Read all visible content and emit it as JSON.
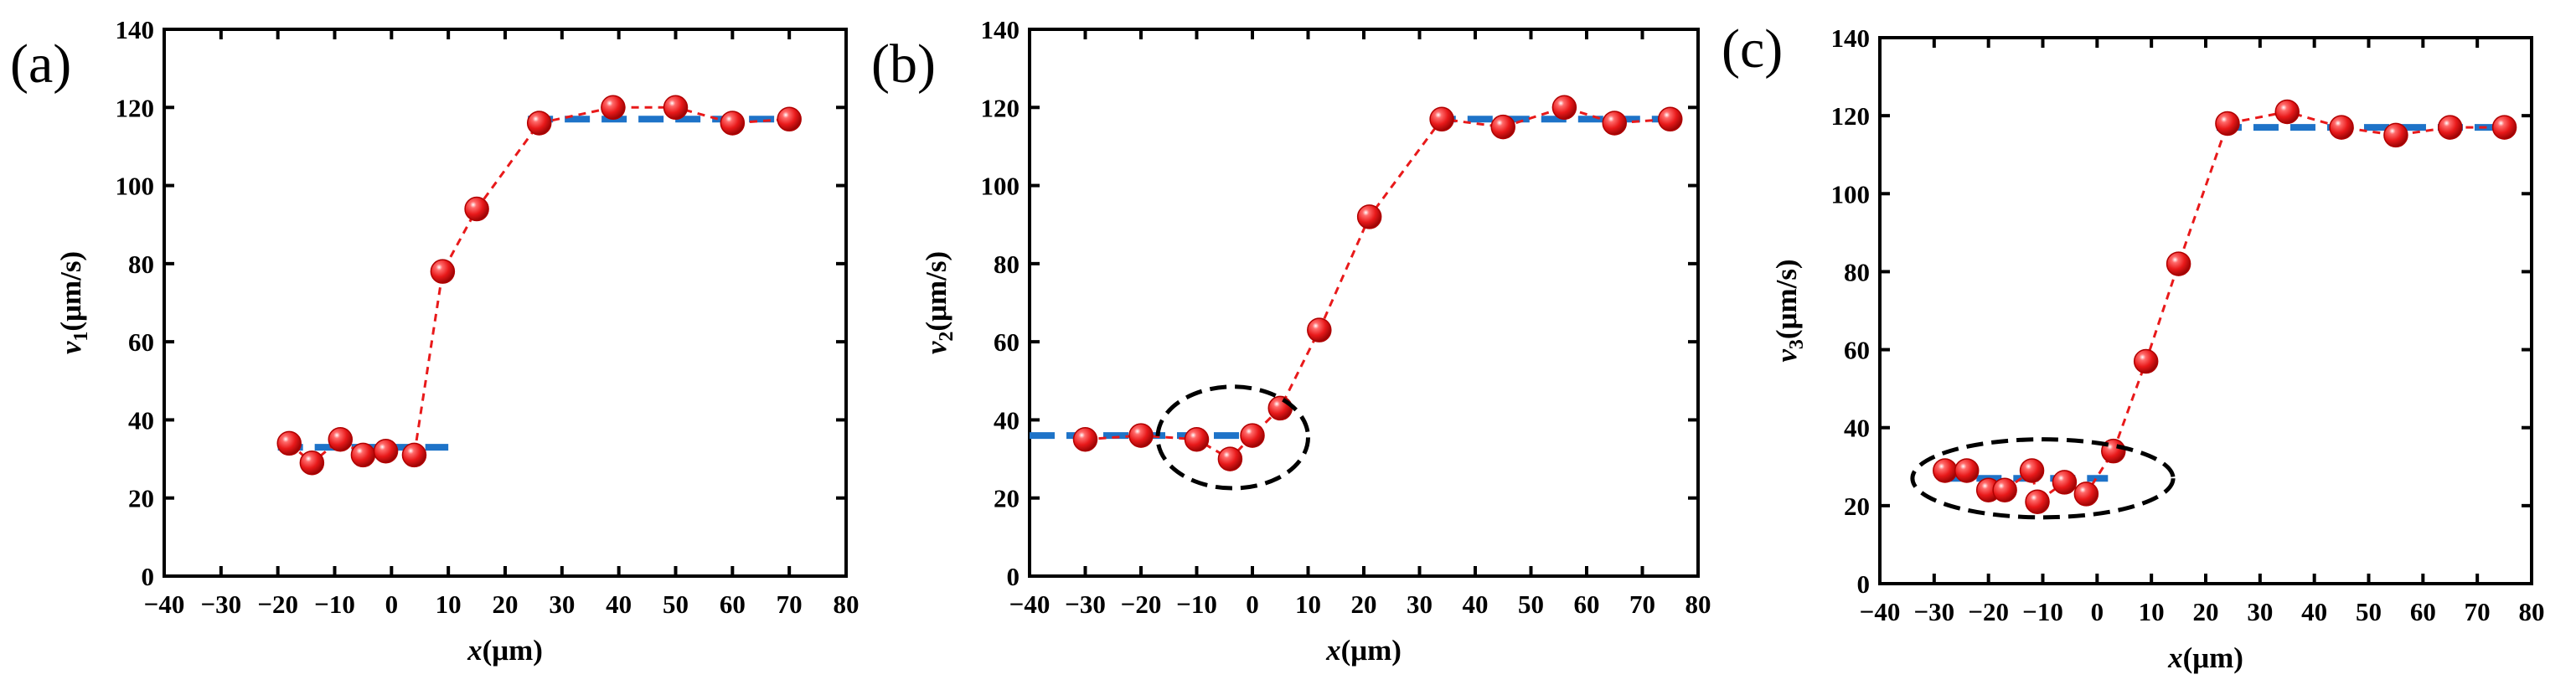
{
  "chart_data": [
    {
      "type": "scatter",
      "panel_label": "(a)",
      "xlabel_var": "x",
      "xlabel_unit": "(μm)",
      "ylabel_var": "v",
      "ylabel_sub": "1",
      "ylabel_unit": "(μm/s)",
      "xlim": [
        -40,
        80
      ],
      "ylim": [
        0,
        140
      ],
      "xticks": [
        -40,
        -30,
        -20,
        -10,
        0,
        10,
        20,
        30,
        40,
        50,
        60,
        70,
        80
      ],
      "xtick_labels": [
        "−40",
        "−30",
        "−20",
        "−10",
        "0",
        "10",
        "20",
        "30",
        "40",
        "50",
        "60",
        "70",
        "80"
      ],
      "yticks": [
        0,
        20,
        40,
        60,
        80,
        100,
        120,
        140
      ],
      "ytick_labels": [
        "0",
        "20",
        "40",
        "60",
        "80",
        "100",
        "120",
        "140"
      ],
      "points": {
        "x": [
          -18,
          -14,
          -9,
          -5,
          -1,
          4,
          9,
          15,
          26,
          39,
          50,
          60,
          70
        ],
        "y": [
          34,
          29,
          35,
          31,
          32,
          31,
          78,
          94,
          116,
          120,
          120,
          116,
          117
        ]
      },
      "mean_lines": [
        {
          "x": [
            -20,
            10
          ],
          "y": 33
        },
        {
          "x": [
            24,
            72
          ],
          "y": 117
        }
      ],
      "ellipse": null
    },
    {
      "type": "scatter",
      "panel_label": "(b)",
      "xlabel_var": "x",
      "xlabel_unit": "(μm)",
      "ylabel_var": "v",
      "ylabel_sub": "2",
      "ylabel_unit": "(μm/s)",
      "xlim": [
        -40,
        80
      ],
      "ylim": [
        0,
        140
      ],
      "xticks": [
        -40,
        -30,
        -20,
        -10,
        0,
        10,
        20,
        30,
        40,
        50,
        60,
        70,
        80
      ],
      "xtick_labels": [
        "−40",
        "−30",
        "−20",
        "−10",
        "0",
        "10",
        "20",
        "30",
        "40",
        "50",
        "60",
        "70",
        "80"
      ],
      "yticks": [
        0,
        20,
        40,
        60,
        80,
        100,
        120,
        140
      ],
      "ytick_labels": [
        "0",
        "20",
        "40",
        "60",
        "80",
        "100",
        "120",
        "140"
      ],
      "points": {
        "x": [
          -30,
          -20,
          -10,
          -4,
          0,
          5,
          12,
          21,
          34,
          45,
          56,
          65,
          75
        ],
        "y": [
          35,
          36,
          35,
          30,
          36,
          43,
          63,
          92,
          117,
          115,
          120,
          116,
          117
        ]
      },
      "mean_lines": [
        {
          "x": [
            -40,
            0
          ],
          "y": 36
        },
        {
          "x": [
            32,
            77
          ],
          "y": 117
        }
      ],
      "ellipse": {
        "cx": -3.5,
        "cy": 35.5,
        "rx": 13.5,
        "ry": 13
      }
    },
    {
      "type": "scatter",
      "panel_label": "(c)",
      "xlabel_var": "x",
      "xlabel_unit": "(μm)",
      "ylabel_var": "v",
      "ylabel_sub": "3",
      "ylabel_unit": "(μm/s)",
      "xlim": [
        -40,
        80
      ],
      "ylim": [
        0,
        140
      ],
      "xticks": [
        -40,
        -30,
        -20,
        -10,
        0,
        10,
        20,
        30,
        40,
        50,
        60,
        70,
        80
      ],
      "xtick_labels": [
        "−40",
        "−30",
        "−20",
        "−10",
        "0",
        "10",
        "20",
        "30",
        "40",
        "50",
        "60",
        "70",
        "80"
      ],
      "yticks": [
        0,
        20,
        40,
        60,
        80,
        100,
        120,
        140
      ],
      "ytick_labels": [
        "0",
        "20",
        "40",
        "60",
        "80",
        "100",
        "120",
        "140"
      ],
      "points": {
        "x": [
          -28,
          -24,
          -20,
          -17,
          -12,
          -11,
          -6,
          -2,
          3,
          9,
          15,
          24,
          35,
          45,
          55,
          65,
          75
        ],
        "y": [
          29,
          29,
          24,
          24,
          29,
          21,
          26,
          23,
          34,
          57,
          82,
          118,
          121,
          117,
          115,
          117,
          117
        ]
      },
      "mean_lines": [
        {
          "x": [
            -29,
            2
          ],
          "y": 27
        },
        {
          "x": [
            22,
            77
          ],
          "y": 117
        }
      ],
      "ellipse": {
        "cx": -10,
        "cy": 27,
        "rx": 24,
        "ry": 10
      }
    }
  ],
  "colors": {
    "marker": "#e8191a",
    "marker_edge": "#b00000",
    "marker_highlight": "#ffffff",
    "connector": "#e8191a",
    "mean_line": "#1e73c8",
    "ellipse": "#000000",
    "axis": "#000000"
  }
}
